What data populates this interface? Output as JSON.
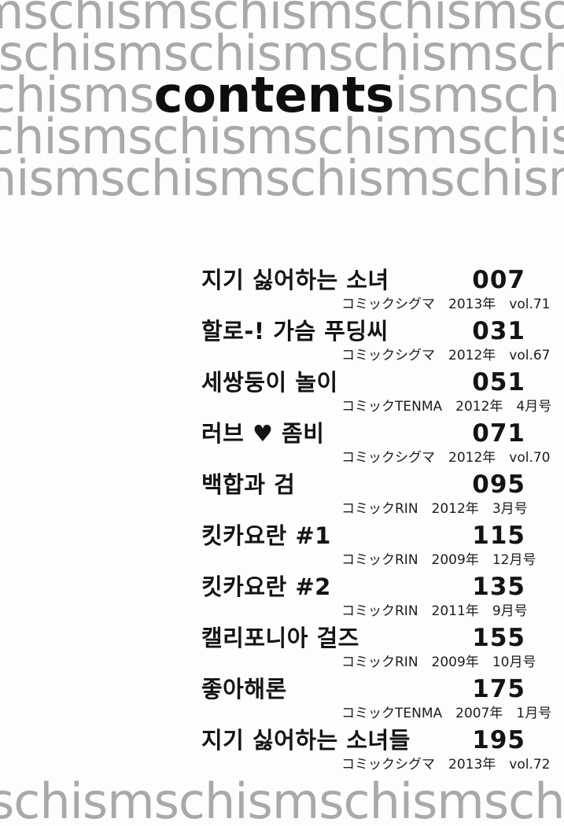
{
  "colors": {
    "background_word_gray": "#a9a9ad",
    "title_black": "#0e0e0e",
    "text_black": "#141414",
    "page_background": "#fdfdfd"
  },
  "background": {
    "rows": {
      "row1": "mschismschismschismschismschism",
      "row2": "schismschismschismschismschism",
      "row3_prefix": "chisms",
      "row3_suffix": "ismschismschismschism",
      "row4": "chismschismschismschismschism",
      "row5": "hismschismschismschismschism",
      "footer": "schismschismschismschismschism"
    }
  },
  "header": {
    "title": "contents"
  },
  "toc": {
    "entries": [
      {
        "title": "지기 싫어하는 소녀",
        "page": "007",
        "magazine": "コミックシグマ",
        "year": "2013年",
        "issue": "vol.71"
      },
      {
        "title": "할로-! 가슴 푸딩씨",
        "page": "031",
        "magazine": "コミックシグマ",
        "year": "2012年",
        "issue": "vol.67"
      },
      {
        "title": "세쌍둥이 놀이",
        "page": "051",
        "magazine": "コミックTENMA",
        "year": "2012年",
        "issue": "4月号"
      },
      {
        "title": "러브 ♥ 좀비",
        "page": "071",
        "magazine": "コミックシグマ",
        "year": "2012年",
        "issue": "vol.70"
      },
      {
        "title": "백합과 검",
        "page": "095",
        "magazine": "コミックRIN",
        "year": "2012年",
        "issue": "3月号"
      },
      {
        "title": "킷카요란  #1",
        "page": "115",
        "magazine": "コミックRIN",
        "year": "2009年",
        "issue": "12月号"
      },
      {
        "title": "킷카요란  #2",
        "page": "135",
        "magazine": "コミックRIN",
        "year": "2011年",
        "issue": "9月号"
      },
      {
        "title": "캘리포니아 걸즈",
        "page": "155",
        "magazine": "コミックRIN",
        "year": "2009年",
        "issue": "10月号"
      },
      {
        "title": "좋아해론",
        "page": "175",
        "magazine": "コミックTENMA",
        "year": "2007年",
        "issue": "1月号"
      },
      {
        "title": "지기 싫어하는 소녀들",
        "page": "195",
        "magazine": "コミックシグマ",
        "year": "2013年",
        "issue": "vol.72"
      }
    ]
  }
}
